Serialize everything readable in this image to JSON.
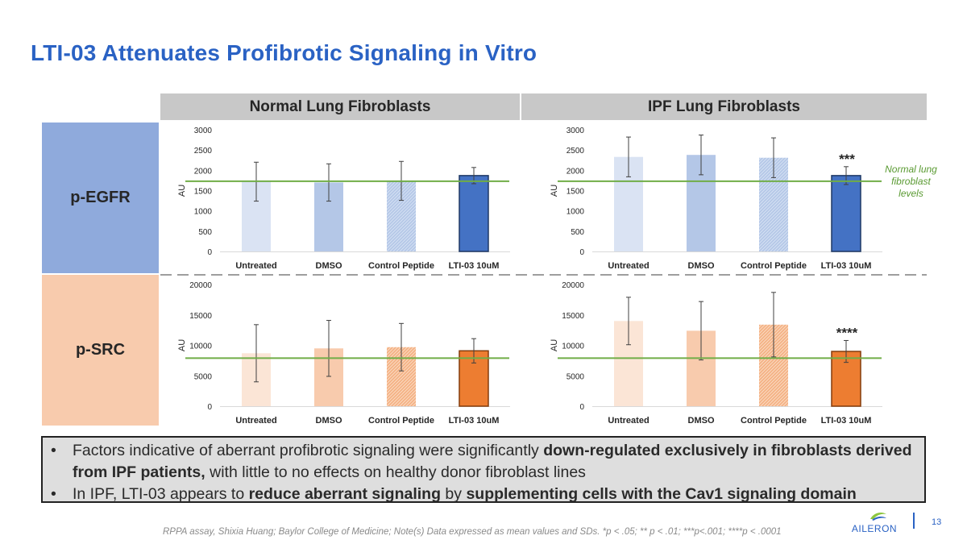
{
  "title": "LTI-03 Attenuates Profibrotic Signaling in Vitro",
  "columns": [
    "Normal Lung Fibroblasts",
    "IPF Lung Fibroblasts"
  ],
  "rows": [
    "p-EGFR",
    "p-SRC"
  ],
  "normal_level_note": "Normal lung fibroblast levels",
  "bullets": {
    "b1": {
      "p1": "Factors indicative of aberrant profibrotic signaling were significantly ",
      "b1": "down-regulated exclusively in fibroblasts derived from IPF patients,",
      "p2": " with little to no effects on healthy donor fibroblast lines"
    },
    "b2": {
      "p1": "In IPF, LTI-03 appears to ",
      "b1": "reduce aberrant signaling",
      "p2": " by ",
      "b2": "supplementing cells with the Cav1 signaling domain"
    }
  },
  "footnote": "RPPA assay, Shixia Huang; Baylor College of Medicine; Note(s) Data expressed as mean values and SDs. *p < .05; ** p < .01; ***p<.001; ****p < .0001",
  "logo_text": "AILERON",
  "page_number": "13",
  "colors": {
    "title": "#2a62c4",
    "egfr_row": "#8faadc",
    "src_row": "#f8cbad",
    "reference_line": "#70ad47"
  },
  "chart_data": [
    {
      "id": "egfr_normal",
      "type": "bar",
      "ylabel": "AU",
      "ylim": [
        0,
        3000
      ],
      "yticks": [
        "0",
        "500",
        "1000",
        "1500",
        "2000",
        "2500",
        "3000"
      ],
      "categories": [
        "Untreated",
        "DMSO",
        "Control Peptide",
        "LTI-03 10uM"
      ],
      "values": [
        1720,
        1700,
        1740,
        1870
      ],
      "errors": [
        480,
        460,
        480,
        200
      ],
      "reference_line": 1730,
      "significance": "",
      "palette": "blue"
    },
    {
      "id": "egfr_ipf",
      "type": "bar",
      "ylabel": "AU",
      "ylim": [
        0,
        3000
      ],
      "yticks": [
        "0",
        "500",
        "1000",
        "1500",
        "2000",
        "2500",
        "3000"
      ],
      "categories": [
        "Untreated",
        "DMSO",
        "Control Peptide",
        "LTI-03 10uM"
      ],
      "values": [
        2330,
        2380,
        2310,
        1870
      ],
      "errors": [
        490,
        490,
        490,
        220
      ],
      "reference_line": 1730,
      "significance": "***",
      "palette": "blue"
    },
    {
      "id": "src_normal",
      "type": "bar",
      "ylabel": "AU",
      "ylim": [
        0,
        20000
      ],
      "yticks": [
        "0",
        "5000",
        "10000",
        "15000",
        "20000"
      ],
      "categories": [
        "Untreated",
        "DMSO",
        "Control Peptide",
        "LTI-03 10uM"
      ],
      "values": [
        8700,
        9500,
        9700,
        9100
      ],
      "errors": [
        4700,
        4600,
        3900,
        2000
      ],
      "reference_line": 7900,
      "significance": "",
      "palette": "orange"
    },
    {
      "id": "src_ipf",
      "type": "bar",
      "ylabel": "AU",
      "ylim": [
        0,
        20000
      ],
      "yticks": [
        "0",
        "5000",
        "10000",
        "15000",
        "20000"
      ],
      "categories": [
        "Untreated",
        "DMSO",
        "Control Peptide",
        "LTI-03 10uM"
      ],
      "values": [
        14000,
        12400,
        13400,
        9000
      ],
      "errors": [
        3900,
        4800,
        5300,
        1800
      ],
      "reference_line": 7900,
      "significance": "****",
      "palette": "orange"
    }
  ]
}
